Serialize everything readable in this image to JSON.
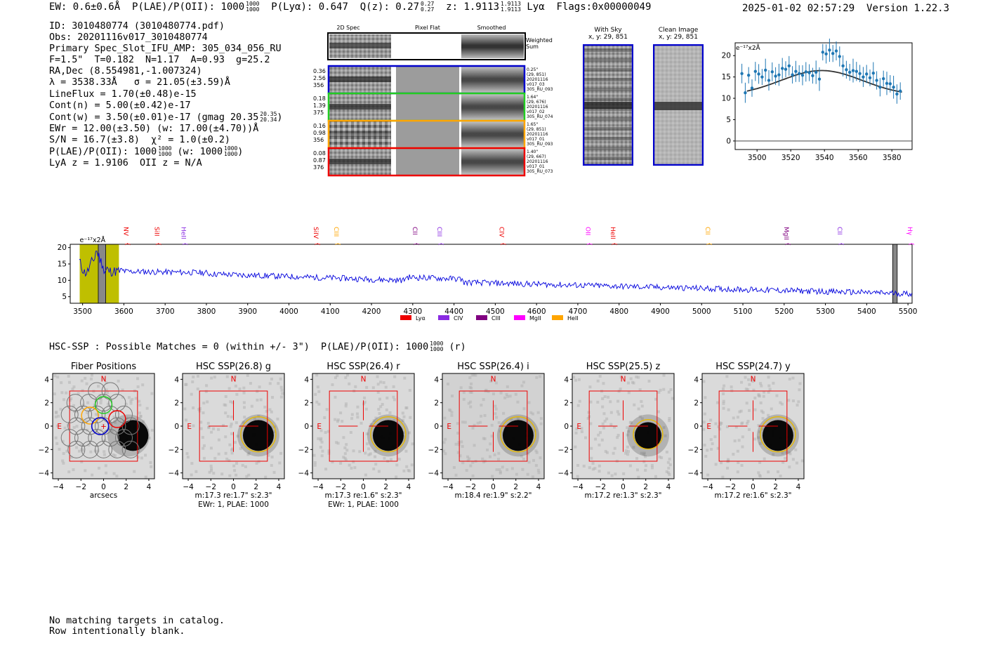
{
  "header": {
    "ew": "EW: 0.6±0.6Å",
    "plae_label": "P(LAE)/P(OII): 1000",
    "plae_hi": "1000",
    "plae_lo": "1000",
    "plya": "P(Lyα): 0.647",
    "qz": "Q(z): 0.27",
    "qz_hi": "0.27",
    "qz_lo": "0.27",
    "z": "z: 1.9113",
    "z_hi": "1.9113",
    "z_lo": "1.9113",
    "line": "Lyα",
    "flags": "Flags:0x00000049",
    "datetime": "2025-01-02 02:57:29",
    "version": "Version 1.22.3"
  },
  "info": {
    "id": "ID: 3010480774 (3010480774.pdf)",
    "obs": "Obs: 20201116v017_3010480774",
    "primary": "Primary Spec_Slot_IFU_AMP: 305_034_056_RU",
    "fparams": "F=1.5\"  T=0.182  N=1.17  A=0.93  g=25.2",
    "radec": "RA,Dec (8.554981,-1.007324)",
    "lambda": "λ = 3538.33Å   σ = 21.05(±3.59)Å",
    "lineflux": "LineFlux = 1.70(±0.48)e-15",
    "contn": "Cont(n) = 5.00(±0.42)e-17",
    "contw": "Cont(w) = 3.50(±0.01)e-17 (gmag 20.35",
    "contw_hi": "20.35",
    "contw_lo": "20.34",
    "ewr": "EWr = 12.00(±3.50) (w: 17.00(±4.70))Å",
    "sn": "S/N = 16.7(±3.8)  χ² = 1.0(±0.2)",
    "plae": "P(LAE)/P(OII): 1000",
    "plae_hi": "1000",
    "plae_lo": "1000",
    "plae_w": "(w: 1000",
    "plae_w_hi": "1000",
    "plae_w_lo": "1000",
    "lyaz": "LyA z = 1.9106  OII z = N/A"
  },
  "cutouts": {
    "col_2d": "2D Spec",
    "col_flat": "Pixel Flat",
    "col_smooth": "Smoothed",
    "weighted": "Weighted\nSum",
    "rows": [
      {
        "left": [
          "0.36",
          "2.56",
          "356"
        ],
        "right": [
          "0.25\"",
          "(29, 851)",
          "20201116",
          "v017_03",
          "305_RU_093"
        ],
        "color": "#0000cc"
      },
      {
        "left": [
          "0.18",
          "1.39",
          "375"
        ],
        "right": [
          "1.64\"",
          "(29, 676)",
          "20201116",
          "v017_02",
          "305_RU_074"
        ],
        "color": "#22cc22"
      },
      {
        "left": [
          "0.16",
          "0.98",
          "356"
        ],
        "right": [
          "1.65\"",
          "(29, 851)",
          "20201116",
          "v017_01",
          "305_RU_093"
        ],
        "color": "#ffa500"
      },
      {
        "left": [
          "0.08",
          "0.87",
          "376"
        ],
        "right": [
          "1.40\"",
          "(29, 667)",
          "20201116",
          "v017_01",
          "305_RU_073"
        ],
        "color": "#ee0000"
      }
    ]
  },
  "sky": {
    "with_title": "With Sky",
    "with_sub": "x, y: 29, 851",
    "clean_title": "Clean Image",
    "clean_sub": "x, y: 29, 851"
  },
  "zoom_chart": {
    "unit_label": "e⁻¹⁷x2Å",
    "yticks": [
      "0",
      "5",
      "10",
      "15",
      "20"
    ],
    "xticks": [
      "3500",
      "3520",
      "3540",
      "3560",
      "3580"
    ]
  },
  "chart_data": [
    {
      "type": "scatter",
      "title": "",
      "ylabel": "e⁻¹⁷x2Å",
      "xlim": [
        3487,
        3592
      ],
      "ylim": [
        -2,
        23
      ],
      "x": [
        3491,
        3493,
        3495,
        3497,
        3499,
        3501,
        3503,
        3505,
        3507,
        3509,
        3511,
        3513,
        3515,
        3517,
        3519,
        3521,
        3523,
        3525,
        3527,
        3529,
        3531,
        3533,
        3535,
        3537,
        3539,
        3541,
        3543,
        3545,
        3547,
        3549,
        3551,
        3553,
        3555,
        3557,
        3559,
        3561,
        3563,
        3565,
        3567,
        3569,
        3571,
        3573,
        3575,
        3577,
        3579,
        3581,
        3583,
        3585
      ],
      "y": [
        15.8,
        11.3,
        15.4,
        12.4,
        16.3,
        15.7,
        15.0,
        16.6,
        14.2,
        16.2,
        15.2,
        15.5,
        17.0,
        16.8,
        17.6,
        15.5,
        16.3,
        15.8,
        15.4,
        16.2,
        16.0,
        15.3,
        16.1,
        14.5,
        20.8,
        20.4,
        21.3,
        20.5,
        21.1,
        19.8,
        17.6,
        16.7,
        16.1,
        16.5,
        16.3,
        15.8,
        15.0,
        15.7,
        14.8,
        15.9,
        14.2,
        12.6,
        14.6,
        13.5,
        13.4,
        12.6,
        11.0,
        11.7
      ],
      "fit_peak": 16.5,
      "fit_center": 3538.33,
      "fit_sigma": 21.05,
      "fit_base": 5.0
    },
    {
      "type": "line",
      "title": "",
      "unit_label": "e⁻¹⁷x2Å",
      "xlim": [
        3470,
        5510
      ],
      "ylim": [
        3,
        21
      ],
      "yticks": [
        5,
        10,
        15,
        20
      ],
      "xticks": [
        3500,
        3600,
        3700,
        3800,
        3900,
        4000,
        4100,
        4200,
        4300,
        4400,
        4500,
        4600,
        4700,
        4800,
        4900,
        5000,
        5100,
        5200,
        5300,
        5400,
        5500
      ],
      "lines": [
        {
          "name": "NV",
          "x": 3600,
          "color": "#ee0000"
        },
        {
          "name": "SiII",
          "x": 3675,
          "color": "#ee0000"
        },
        {
          "name": "HeII",
          "x": 3740,
          "color": "#8a2be2"
        },
        {
          "name": "SiIV",
          "x": 4060,
          "color": "#ee0000"
        },
        {
          "name": "CIII",
          "x": 4110,
          "color": "#ffa500"
        },
        {
          "name": "CII",
          "x": 4300,
          "color": "#800080"
        },
        {
          "name": "CIII",
          "x": 4360,
          "color": "#8a2be2"
        },
        {
          "name": "CIV",
          "x": 4510,
          "color": "#ee0000"
        },
        {
          "name": "OII",
          "x": 4720,
          "color": "#ff00ff"
        },
        {
          "name": "HeII",
          "x": 4780,
          "color": "#ee0000"
        },
        {
          "name": "CII",
          "x": 5010,
          "color": "#ffa500"
        },
        {
          "name": "MgII",
          "x": 5200,
          "color": "#800080"
        },
        {
          "name": "CII",
          "x": 5330,
          "color": "#8a2be2"
        },
        {
          "name": "Hγ",
          "x": 5500,
          "color": "#ff00ff"
        }
      ],
      "legend": [
        {
          "name": "Lyα",
          "color": "#ee0000"
        },
        {
          "name": "CIV",
          "color": "#8a2be2"
        },
        {
          "name": "CIII",
          "color": "#800080"
        },
        {
          "name": "MgII",
          "color": "#ff00ff"
        },
        {
          "name": "HeII",
          "color": "#ffa500"
        }
      ]
    }
  ],
  "hsc": {
    "summary": "HSC-SSP : Possible Matches = 0 (within +/- 3\")  P(LAE)/P(OII): 1000",
    "summary_hi": "1000",
    "summary_lo": "1000",
    "summary_band": "(r)",
    "axis_ticks": [
      "4",
      "2",
      "0",
      "−2",
      "−4"
    ],
    "xticks": [
      "−4",
      "−2",
      "0",
      "2",
      "4"
    ],
    "panels": [
      {
        "title": "Fiber Positions",
        "cap1": "arcsecs",
        "cap2": ""
      },
      {
        "title": "HSC SSP(26.8) g",
        "cap1": "m:17.3  re:1.7\"  s:2.3\"",
        "cap2": "EWr: 1, PLAE: 1000"
      },
      {
        "title": "HSC SSP(26.4) r",
        "cap1": "m:17.3  re:1.6\"  s:2.3\"",
        "cap2": "EWr: 1, PLAE: 1000"
      },
      {
        "title": "HSC SSP(26.4) i",
        "cap1": "m:18.4  re:1.9\"  s:2.2\"",
        "cap2": ""
      },
      {
        "title": "HSC SSP(25.5) z",
        "cap1": "m:17.2  re:1.3\"  s:2.3\"",
        "cap2": ""
      },
      {
        "title": "HSC SSP(24.7) y",
        "cap1": "m:17.2  re:1.6\"  s:2.3\"",
        "cap2": ""
      }
    ],
    "north": "N",
    "east": "E"
  },
  "notes": {
    "line1": "No matching targets in catalog.",
    "line2": "Row intentionally blank."
  }
}
